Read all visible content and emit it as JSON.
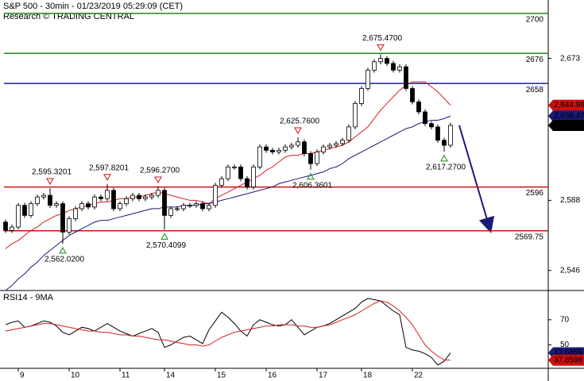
{
  "chart_data": {
    "type": "candlestick",
    "title": "S&P 500 - 30min - 01/23/2019 05:29:09 (CET)",
    "subtitle": "Research © TRADING CENTRAL",
    "categories": [
      null,
      null,
      "9",
      null,
      null,
      null,
      null,
      null,
      null,
      null,
      "10",
      null,
      null,
      null,
      null,
      null,
      null,
      null,
      "11",
      null,
      null,
      null,
      null,
      null,
      null,
      "14",
      null,
      null,
      null,
      null,
      null,
      null,
      null,
      "15",
      null,
      null,
      null,
      null,
      null,
      null,
      null,
      "16",
      null,
      null,
      null,
      null,
      null,
      null,
      null,
      "17",
      null,
      null,
      null,
      null,
      null,
      null,
      "18",
      null,
      null,
      null,
      null,
      null,
      null,
      null,
      "22",
      null,
      null,
      null,
      null,
      null,
      null
    ],
    "open": [
      2575,
      2570,
      2572,
      2585,
      2579,
      2586,
      2590,
      2591,
      2585,
      2586,
      2569,
      2577,
      2583,
      2586,
      2584,
      2590,
      2589,
      2594,
      2583,
      2586,
      2589,
      2591,
      2589,
      2590,
      2591,
      2594,
      2579,
      2583,
      2583,
      2585,
      2585,
      2586,
      2583,
      2585,
      2597,
      2601,
      2608,
      2608,
      2601,
      2596,
      2608,
      2620,
      2618,
      2617,
      2618,
      2620,
      2621,
      2623,
      2616,
      2610,
      2617,
      2620,
      2621,
      2622,
      2624,
      2632,
      2646,
      2655,
      2666,
      2671,
      2673,
      2670,
      2666,
      2668,
      2655,
      2647,
      2641,
      2634,
      2632,
      2624,
      2621
    ],
    "high": [
      2576.5,
      2573.5,
      2586.5,
      2586.5,
      2587.5,
      2591.5,
      2592.5,
      2595.32,
      2587.5,
      2587.5,
      2578.5,
      2584.5,
      2587.5,
      2587.5,
      2591.5,
      2591.5,
      2597.82,
      2595.5,
      2587.5,
      2590.5,
      2592.5,
      2592.5,
      2591.5,
      2592.5,
      2596.27,
      2595.5,
      2584.5,
      2584.5,
      2586.5,
      2586.5,
      2587.5,
      2587.5,
      2586.5,
      2598.5,
      2602.5,
      2609.5,
      2609.5,
      2609.5,
      2602.5,
      2609.5,
      2621.5,
      2621.5,
      2619.5,
      2619.5,
      2621.5,
      2622.5,
      2625.76,
      2624.5,
      2617.5,
      2618.5,
      2621.5,
      2622.5,
      2623.5,
      2625.5,
      2633.5,
      2647.5,
      2656.5,
      2667.5,
      2672.5,
      2675.47,
      2674.5,
      2671.5,
      2669.5,
      2669.5,
      2656.5,
      2648.5,
      2642.5,
      2635.5,
      2633.5,
      2625.5,
      2634.5
    ],
    "low": [
      2568.5,
      2568.5,
      2570.5,
      2577.5,
      2577.5,
      2584.5,
      2588.5,
      2583.5,
      2583.5,
      2562.02,
      2567.5,
      2575.5,
      2581.5,
      2582.5,
      2582.5,
      2587.5,
      2587.5,
      2581.5,
      2581.5,
      2584.5,
      2587.5,
      2587.5,
      2587.5,
      2588.5,
      2589.5,
      2570.41,
      2577.5,
      2581.5,
      2581.5,
      2583.5,
      2583.5,
      2581.5,
      2581.5,
      2583.5,
      2595.5,
      2599.5,
      2606.5,
      2599.5,
      2594.5,
      2594.5,
      2606.5,
      2616.5,
      2615.5,
      2615.5,
      2616.5,
      2618.5,
      2619.5,
      2614.5,
      2606.36,
      2608.5,
      2615.5,
      2618.5,
      2619.5,
      2620.5,
      2622.5,
      2630.5,
      2644.5,
      2653.5,
      2664.5,
      2669.5,
      2668.5,
      2664.5,
      2664.5,
      2653.5,
      2645.5,
      2639.5,
      2632.5,
      2630.5,
      2622.5,
      2617.27,
      2619.5
    ],
    "close": [
      2570,
      2572,
      2585,
      2579,
      2586,
      2590,
      2591,
      2585,
      2586,
      2569,
      2577,
      2583,
      2586,
      2584,
      2590,
      2589,
      2594,
      2583,
      2586,
      2589,
      2591,
      2589,
      2590,
      2591,
      2594,
      2579,
      2583,
      2583,
      2585,
      2585,
      2586,
      2583,
      2585,
      2597,
      2601,
      2608,
      2608,
      2601,
      2596,
      2608,
      2620,
      2618,
      2617,
      2618,
      2620,
      2621,
      2623,
      2616,
      2610,
      2617,
      2620,
      2621,
      2622,
      2624,
      2632,
      2646,
      2655,
      2666,
      2671,
      2673,
      2670,
      2666,
      2668,
      2655,
      2647,
      2641,
      2634,
      2632,
      2624,
      2621,
      2632.9
    ],
    "moving_averages": [
      {
        "color": "#d42020",
        "values": [
          2559,
          2562,
          2564,
          2567,
          2570,
          2572,
          2575,
          2577,
          2579,
          2580,
          2582,
          2583,
          2584,
          2585,
          2586,
          2587,
          2587,
          2588,
          2589,
          2589,
          2590,
          2590,
          2591,
          2592,
          2593,
          2592,
          2591,
          2590,
          2589,
          2588,
          2588,
          2587,
          2586,
          2589,
          2591,
          2593,
          2595,
          2597,
          2599,
          2601,
          2603,
          2606,
          2608,
          2611,
          2614,
          2615,
          2615,
          2616,
          2616,
          2617,
          2618,
          2619,
          2620,
          2621,
          2623,
          2626,
          2629,
          2632,
          2637,
          2642,
          2646,
          2650,
          2654,
          2657,
          2659,
          2659,
          2659,
          2656,
          2653,
          2649,
          2644.96
        ]
      },
      {
        "color": "#1a1a7a",
        "values": [
          2534,
          2537,
          2541,
          2544,
          2548,
          2551,
          2555,
          2558,
          2561,
          2564,
          2567,
          2569,
          2571,
          2573,
          2575,
          2576,
          2576,
          2577,
          2578,
          2579,
          2580,
          2581,
          2582,
          2583,
          2583,
          2584,
          2584,
          2584,
          2585,
          2585,
          2585,
          2586,
          2586,
          2587,
          2588,
          2589,
          2590,
          2591,
          2592,
          2593,
          2594,
          2595,
          2596,
          2598,
          2599,
          2600,
          2601,
          2602,
          2603,
          2604,
          2605,
          2607,
          2608,
          2610,
          2613,
          2615,
          2617,
          2619,
          2621,
          2623,
          2625,
          2627,
          2629,
          2631,
          2632,
          2634,
          2635,
          2636,
          2636,
          2637,
          2638.47
        ]
      }
    ],
    "ylim": [
      2534,
      2708
    ],
    "yticks": [
      {
        "value": 2546,
        "label": "2,546"
      },
      {
        "value": 2588,
        "label": "2,588"
      },
      {
        "value": 2673,
        "label": "2,673"
      }
    ],
    "levels": [
      {
        "value": 2700,
        "color": "#1a8a1a"
      },
      {
        "value": 2676,
        "color": "#1a8a1a"
      },
      {
        "value": 2658,
        "color": "#1a1aa0"
      },
      {
        "value": 2596,
        "color": "#cc1010"
      },
      {
        "value": 2569.75,
        "color": "#cc1010"
      }
    ],
    "price_tags": [
      {
        "value": 2644.96,
        "label": "2,644.96",
        "color": "#cc1010"
      },
      {
        "value": 2638.47,
        "label": "2,638.47",
        "color": "#1a1a7a"
      },
      {
        "value": 2632.9,
        "label": "2,632.9",
        "color": "#000000"
      }
    ],
    "annotations": [
      {
        "value": 2595.32,
        "label": "2,595.3201"
      },
      {
        "value": 2597.82,
        "label": "2,597.8201"
      },
      {
        "value": 2596.27,
        "label": "2,596.2700"
      },
      {
        "value": 2562.02,
        "label": "2,562.0200"
      },
      {
        "value": 2570.41,
        "label": "2,570.4099"
      },
      {
        "value": 2625.76,
        "label": "2,625.7600"
      },
      {
        "value": 2606.36,
        "label": "2,606.3601"
      },
      {
        "value": 2675.47,
        "label": "2,675.4700"
      },
      {
        "value": 2617.27,
        "label": "2,617.2700"
      }
    ],
    "rsi": {
      "title": "RSI14 - 9MA",
      "ylim": [
        32,
        92
      ],
      "yticks": [
        50,
        70
      ],
      "series": [
        {
          "color": "#000000",
          "values": [
            66,
            68,
            69,
            64,
            65,
            67,
            69,
            68,
            65,
            60,
            58,
            61,
            64,
            63,
            61,
            64,
            67,
            64,
            61,
            59,
            57,
            59,
            61,
            63,
            60,
            48,
            50,
            53,
            56,
            57,
            54,
            51,
            62,
            69,
            76,
            72,
            67,
            61,
            57,
            66,
            70,
            68,
            66,
            65,
            66,
            70,
            64,
            58,
            61,
            64,
            65,
            67,
            70,
            73,
            76,
            79,
            84,
            87,
            86,
            85,
            81,
            77,
            74,
            48,
            46,
            45,
            43,
            40,
            34,
            37,
            43.6859
          ]
        },
        {
          "color": "#d42020",
          "values": [
            61,
            62,
            63,
            64,
            65,
            66,
            67,
            67,
            66,
            65,
            64,
            63,
            62,
            61,
            61,
            60,
            60,
            59,
            58,
            58,
            57,
            57,
            56,
            55,
            54,
            54,
            53,
            52,
            51,
            50,
            50,
            49,
            50,
            53,
            56,
            58,
            60,
            61,
            62,
            63,
            64,
            65,
            65,
            66,
            66,
            66,
            65,
            65,
            64,
            64,
            65,
            66,
            68,
            70,
            72,
            74,
            77,
            80,
            83,
            85,
            84,
            81,
            77,
            72,
            66,
            58,
            50,
            45,
            41,
            38,
            37.8598
          ]
        }
      ],
      "tags": [
        {
          "value": 43.6859,
          "color": "#1a1a7a"
        },
        {
          "value": 37.8598,
          "color": "#cc1010"
        }
      ]
    }
  }
}
